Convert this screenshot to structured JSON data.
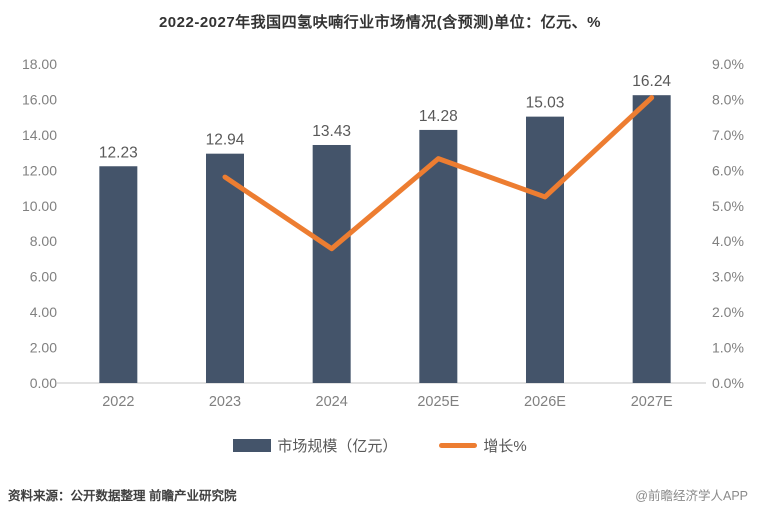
{
  "title": "2022-2027年我国四氢呋喃行业市场情况(含预测)单位：亿元、%",
  "chart_data": {
    "type": "bar+line combo",
    "title": "2022-2027年我国四氢呋喃行业市场情况(含预测)单位：亿元、%",
    "categories": [
      "2022",
      "2023",
      "2024",
      "2025E",
      "2026E",
      "2027E"
    ],
    "series": [
      {
        "name": "市场规模（亿元）",
        "type": "bar",
        "axis": "left",
        "values": [
          12.23,
          12.94,
          13.43,
          14.28,
          15.03,
          16.24
        ],
        "value_labels": [
          "12.23",
          "12.94",
          "13.43",
          "14.28",
          "15.03",
          "16.24"
        ],
        "color": "#44546A"
      },
      {
        "name": "增长%",
        "type": "line",
        "axis": "right",
        "values": [
          null,
          5.81,
          3.79,
          6.33,
          5.25,
          8.05
        ],
        "color": "#ED7D31"
      }
    ],
    "left_axis": {
      "min": 0,
      "max": 18,
      "step": 2,
      "ticks": [
        "0.00",
        "2.00",
        "4.00",
        "6.00",
        "8.00",
        "10.00",
        "12.00",
        "14.00",
        "16.00",
        "18.00"
      ]
    },
    "right_axis": {
      "min": 0,
      "max": 9,
      "step": 1,
      "ticks": [
        "0.0%",
        "1.0%",
        "2.0%",
        "3.0%",
        "4.0%",
        "5.0%",
        "6.0%",
        "7.0%",
        "8.0%",
        "9.0%"
      ]
    },
    "grid": false,
    "legend_position": "bottom"
  },
  "legend": {
    "items": [
      {
        "label": "市场规模（亿元）",
        "swatch": "bar",
        "color": "#44546A"
      },
      {
        "label": "增长%",
        "swatch": "line",
        "color": "#ED7D31"
      }
    ]
  },
  "footer": {
    "source": "资料来源：公开数据整理 前瞻产业研究院",
    "watermark": "@前瞻经济学人APP"
  },
  "colors": {
    "bar": "#44546A",
    "line": "#ED7D31",
    "axis_text": "#808080",
    "value_text": "#595959",
    "baseline": "#D9D9D9",
    "title_text": "#333333"
  }
}
